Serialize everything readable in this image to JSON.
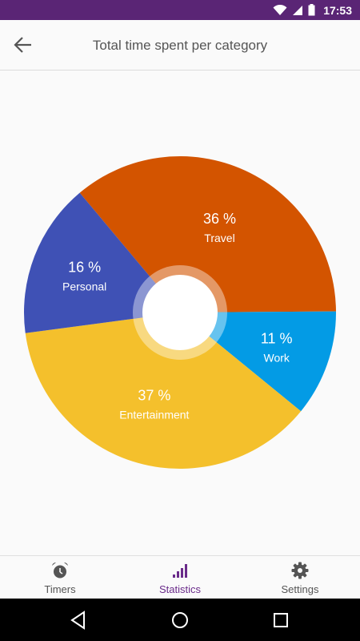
{
  "status_bar": {
    "time": "17:53",
    "bg_color": "#5a2575"
  },
  "header": {
    "title": "Total time spent per category",
    "back_icon": "arrow-left-icon"
  },
  "chart_data": {
    "type": "pie",
    "title": "",
    "donut": true,
    "slices": [
      {
        "label": "Travel",
        "percent_text": "36 %",
        "value": 36,
        "color": "#d35400"
      },
      {
        "label": "Work",
        "percent_text": "11 %",
        "value": 11,
        "color": "#039be5"
      },
      {
        "label": "Entertainment",
        "percent_text": "37 %",
        "value": 37,
        "color": "#f4c02c"
      },
      {
        "label": "Personal",
        "percent_text": "16 %",
        "value": 16,
        "color": "#3f51b5"
      }
    ]
  },
  "bottom_nav": {
    "items": [
      {
        "label": "Timers",
        "icon": "alarm-clock-icon",
        "active": false
      },
      {
        "label": "Statistics",
        "icon": "signal-bars-icon",
        "active": true
      },
      {
        "label": "Settings",
        "icon": "gear-icon",
        "active": false
      }
    ],
    "active_color": "#6a2b8a"
  },
  "system_nav": {
    "icons": [
      "back-triangle-icon",
      "home-circle-icon",
      "recents-square-icon"
    ]
  }
}
